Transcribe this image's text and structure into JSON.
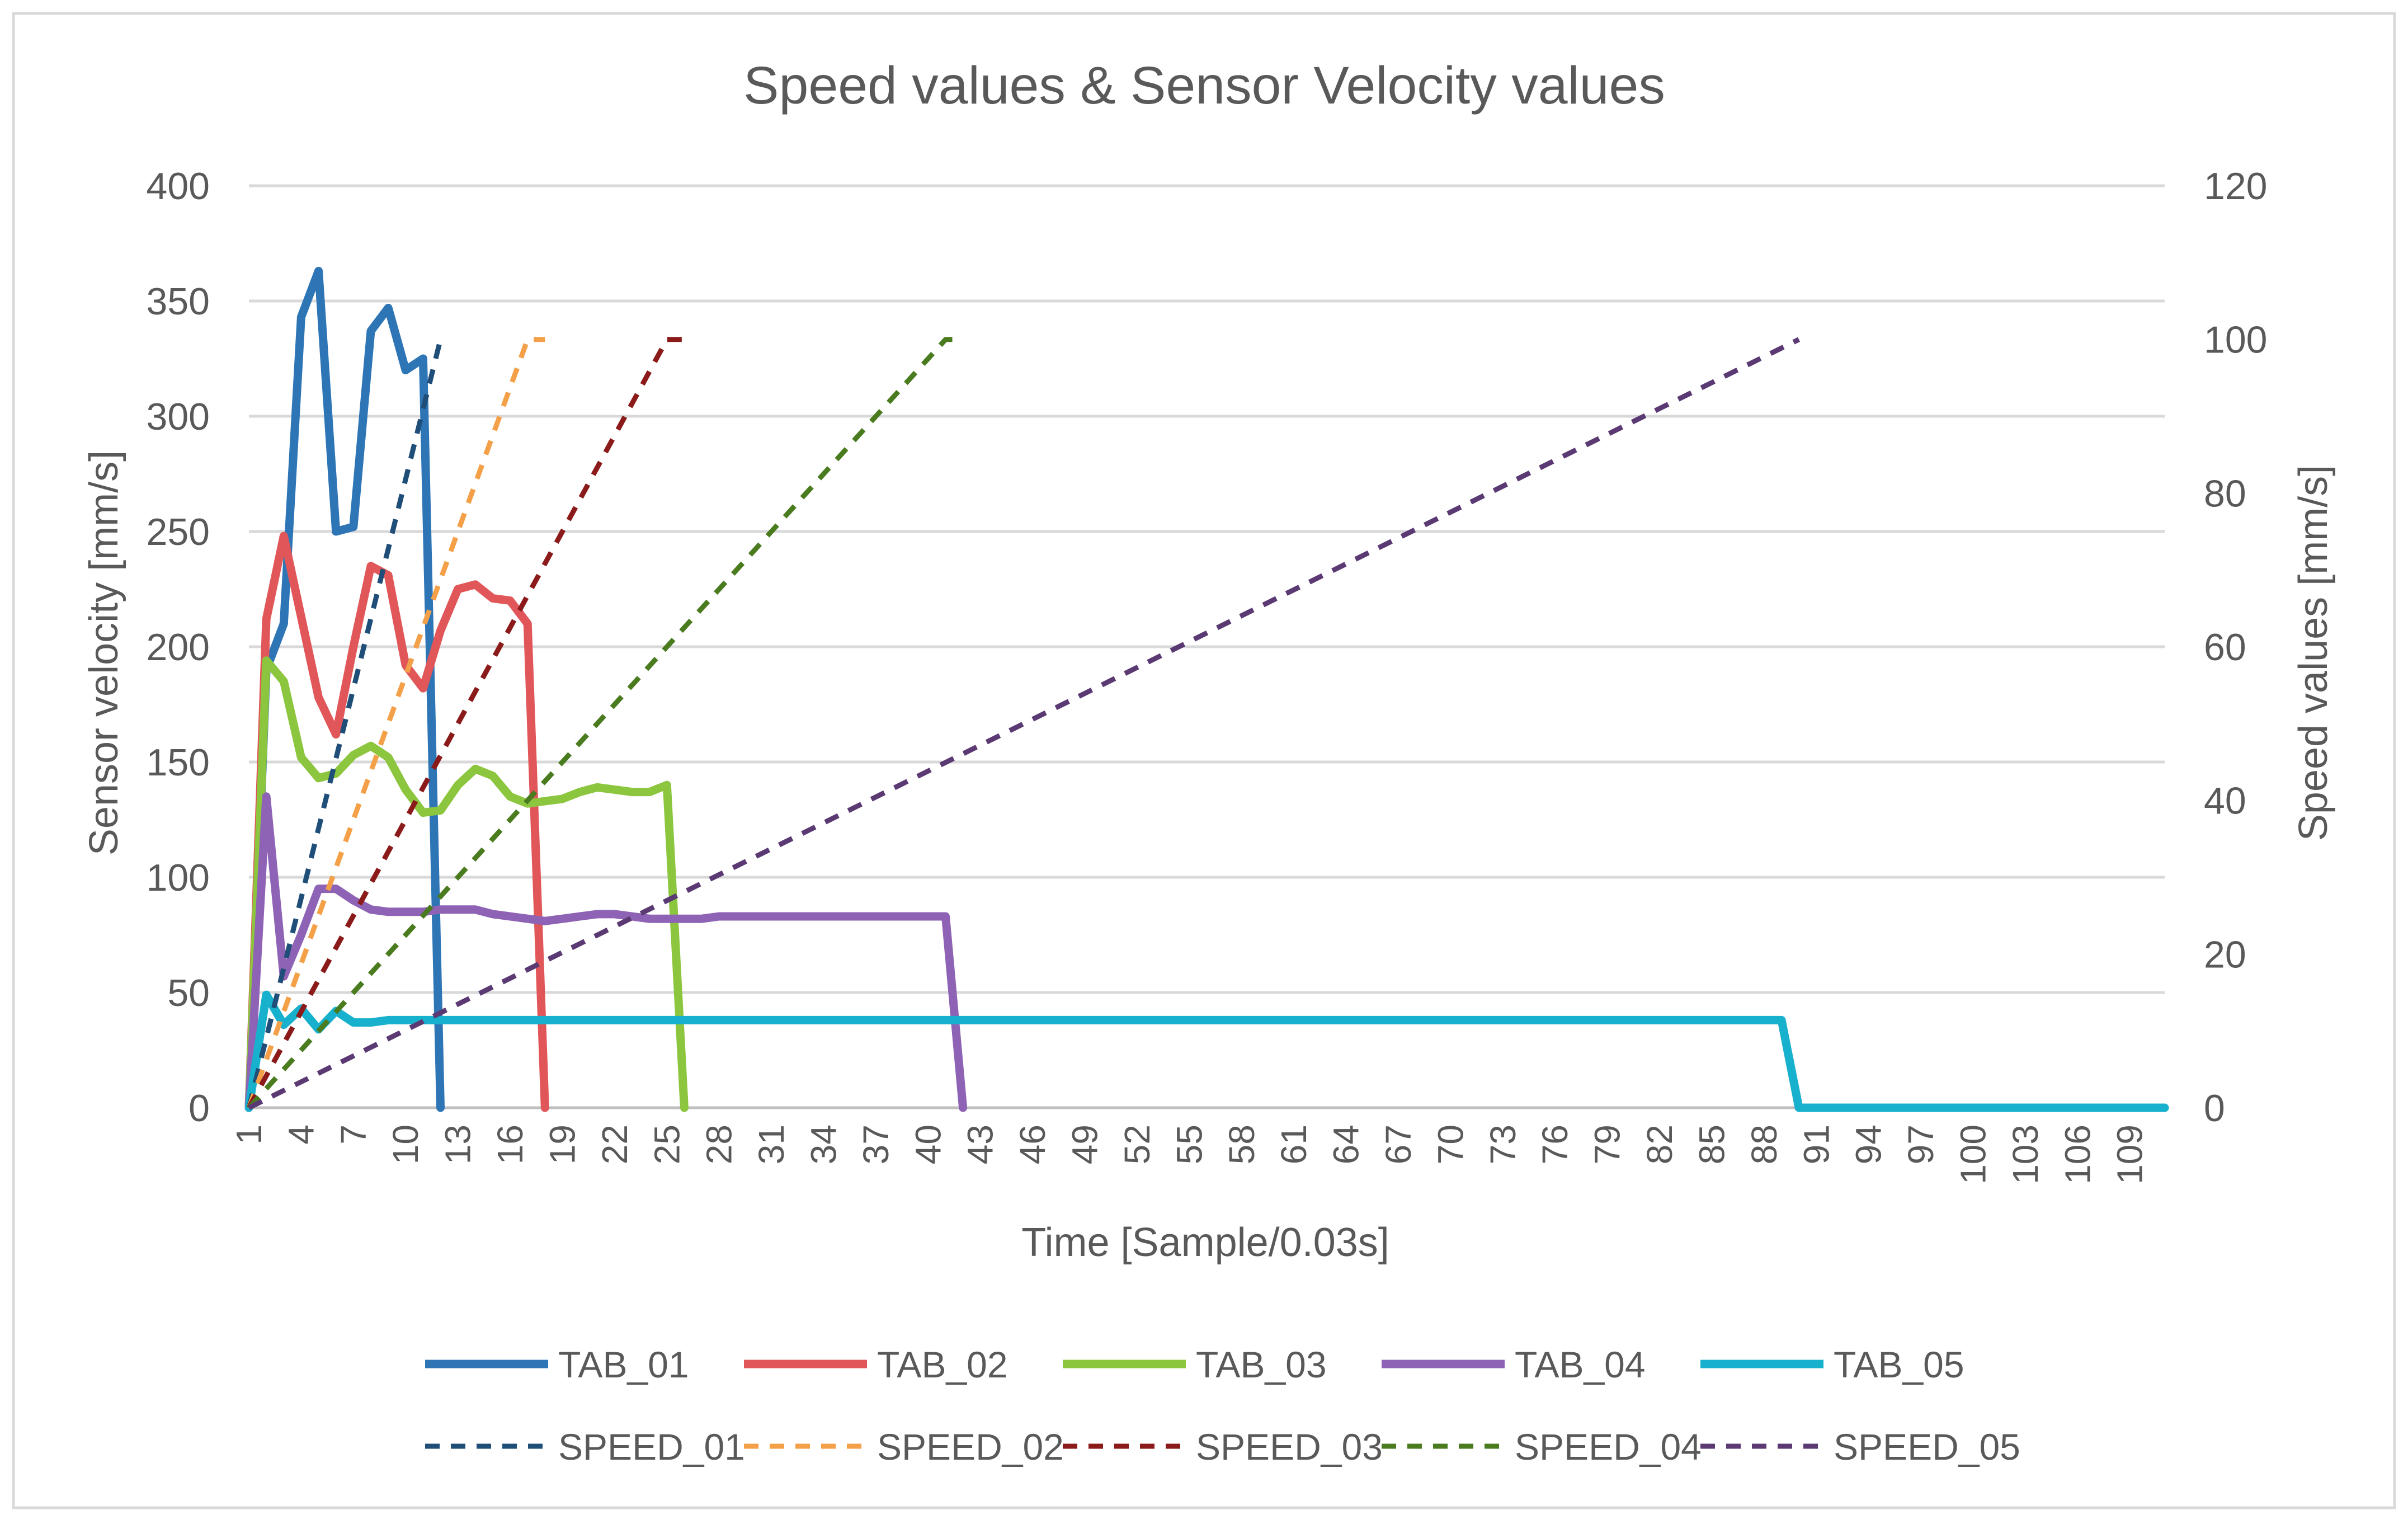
{
  "chart_data": {
    "type": "line",
    "title": "Speed values & Sensor Velocity values",
    "xlabel": "Time [Sample/0.03s]",
    "ylabel": "Sensor velocity [mm/s]",
    "y2label": "Speed values [mm/s]",
    "ylim": [
      0,
      400
    ],
    "y2lim": [
      0,
      120
    ],
    "yticks": [
      0,
      50,
      100,
      150,
      200,
      250,
      300,
      350,
      400
    ],
    "y2ticks": [
      0,
      20,
      40,
      60,
      80,
      100,
      120
    ],
    "x_range": [
      1,
      111
    ],
    "x_tick_labels": [
      "1",
      "4",
      "7",
      "10",
      "13",
      "16",
      "19",
      "22",
      "25",
      "28",
      "31",
      "34",
      "37",
      "40",
      "43",
      "46",
      "49",
      "52",
      "55",
      "58",
      "61",
      "64",
      "67",
      "70",
      "73",
      "76",
      "79",
      "82",
      "85",
      "88",
      "91",
      "94",
      "97",
      "100",
      "103",
      "106",
      "109"
    ],
    "grid": true,
    "legend_position": "bottom",
    "series": [
      {
        "name": "TAB_01",
        "axis": "left",
        "style": "solid",
        "color": "#2E75B6",
        "points": [
          [
            1,
            0
          ],
          [
            2,
            190
          ],
          [
            3,
            210
          ],
          [
            4,
            343
          ],
          [
            5,
            363
          ],
          [
            6,
            250
          ],
          [
            7,
            252
          ],
          [
            8,
            337
          ],
          [
            9,
            347
          ],
          [
            10,
            320
          ],
          [
            11,
            325
          ],
          [
            12,
            0
          ]
        ]
      },
      {
        "name": "TAB_02",
        "axis": "left",
        "style": "solid",
        "color": "#E15759",
        "points": [
          [
            1,
            0
          ],
          [
            2,
            212
          ],
          [
            3,
            248
          ],
          [
            4,
            213
          ],
          [
            5,
            178
          ],
          [
            6,
            162
          ],
          [
            7,
            200
          ],
          [
            8,
            235
          ],
          [
            9,
            231
          ],
          [
            10,
            192
          ],
          [
            11,
            182
          ],
          [
            12,
            207
          ],
          [
            13,
            225
          ],
          [
            14,
            227
          ],
          [
            15,
            221
          ],
          [
            16,
            220
          ],
          [
            17,
            210
          ],
          [
            18,
            0
          ]
        ]
      },
      {
        "name": "TAB_03",
        "axis": "left",
        "style": "solid",
        "color": "#8CC63E",
        "points": [
          [
            1,
            0
          ],
          [
            2,
            194
          ],
          [
            3,
            185
          ],
          [
            4,
            152
          ],
          [
            5,
            143
          ],
          [
            6,
            145
          ],
          [
            7,
            153
          ],
          [
            8,
            157
          ],
          [
            9,
            152
          ],
          [
            10,
            138
          ],
          [
            11,
            128
          ],
          [
            12,
            129
          ],
          [
            13,
            140
          ],
          [
            14,
            147
          ],
          [
            15,
            144
          ],
          [
            16,
            135
          ],
          [
            17,
            132
          ],
          [
            18,
            133
          ],
          [
            19,
            134
          ],
          [
            20,
            137
          ],
          [
            21,
            139
          ],
          [
            22,
            138
          ],
          [
            23,
            137
          ],
          [
            24,
            137
          ],
          [
            25,
            140
          ],
          [
            26,
            0
          ]
        ]
      },
      {
        "name": "TAB_04",
        "axis": "left",
        "style": "solid",
        "color": "#8E63B5",
        "points": [
          [
            1,
            0
          ],
          [
            2,
            135
          ],
          [
            3,
            57
          ],
          [
            4,
            75
          ],
          [
            5,
            95
          ],
          [
            6,
            95
          ],
          [
            7,
            90
          ],
          [
            8,
            86
          ],
          [
            9,
            85
          ],
          [
            10,
            85
          ],
          [
            11,
            85
          ],
          [
            12,
            86
          ],
          [
            13,
            86
          ],
          [
            14,
            86
          ],
          [
            15,
            84
          ],
          [
            16,
            83
          ],
          [
            17,
            82
          ],
          [
            18,
            81
          ],
          [
            19,
            82
          ],
          [
            20,
            83
          ],
          [
            21,
            84
          ],
          [
            22,
            84
          ],
          [
            23,
            83
          ],
          [
            24,
            82
          ],
          [
            25,
            82
          ],
          [
            26,
            82
          ],
          [
            27,
            82
          ],
          [
            28,
            83
          ],
          [
            29,
            83
          ],
          [
            30,
            83
          ],
          [
            31,
            83
          ],
          [
            32,
            83
          ],
          [
            33,
            83
          ],
          [
            34,
            83
          ],
          [
            35,
            83
          ],
          [
            36,
            83
          ],
          [
            37,
            83
          ],
          [
            38,
            83
          ],
          [
            39,
            83
          ],
          [
            40,
            83
          ],
          [
            41,
            83
          ],
          [
            42,
            0
          ]
        ]
      },
      {
        "name": "TAB_05",
        "axis": "left",
        "style": "solid",
        "color": "#17B0CD",
        "points": [
          [
            1,
            0
          ],
          [
            2,
            49
          ],
          [
            3,
            36
          ],
          [
            4,
            43
          ],
          [
            5,
            34
          ],
          [
            6,
            42
          ],
          [
            7,
            37
          ],
          [
            8,
            37
          ],
          [
            9,
            38
          ],
          [
            10,
            38
          ],
          [
            11,
            38
          ],
          [
            12,
            38
          ],
          [
            89,
            38
          ],
          [
            90,
            0
          ],
          [
            111,
            0
          ]
        ]
      },
      {
        "name": "SPEED_01",
        "axis": "right",
        "style": "dashed",
        "color": "#1F4E79",
        "points": [
          [
            1,
            0
          ],
          [
            12,
            100
          ]
        ]
      },
      {
        "name": "SPEED_02",
        "axis": "right",
        "style": "dashed",
        "color": "#F4A048",
        "points": [
          [
            1,
            0
          ],
          [
            17,
            100
          ],
          [
            18,
            100
          ]
        ]
      },
      {
        "name": "SPEED_03",
        "axis": "right",
        "style": "dashed",
        "color": "#8B1A1A",
        "points": [
          [
            1,
            0
          ],
          [
            25,
            100
          ],
          [
            26,
            100
          ]
        ]
      },
      {
        "name": "SPEED_04",
        "axis": "right",
        "style": "dashed",
        "color": "#4A7C1F",
        "points": [
          [
            1,
            0
          ],
          [
            41,
            100
          ],
          [
            42,
            100
          ]
        ]
      },
      {
        "name": "SPEED_05",
        "axis": "right",
        "style": "dashed",
        "color": "#5B3A73",
        "points": [
          [
            1,
            0
          ],
          [
            90,
            100
          ]
        ]
      }
    ]
  }
}
